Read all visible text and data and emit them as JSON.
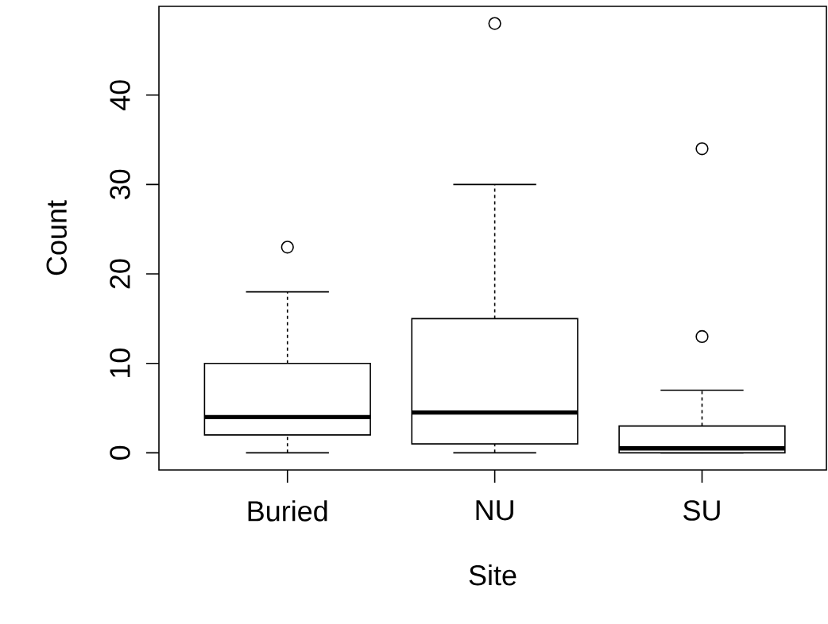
{
  "chart_data": {
    "type": "box",
    "xlabel": "Site",
    "ylabel": "Count",
    "categories": [
      "Buried",
      "NU",
      "SU"
    ],
    "boxes": [
      {
        "low": 0,
        "q1": 2,
        "median": 4,
        "q3": 10,
        "high": 18,
        "outliers": [
          23
        ]
      },
      {
        "low": 0,
        "q1": 1,
        "median": 4.5,
        "q3": 15,
        "high": 30,
        "outliers": [
          48
        ]
      },
      {
        "low": 0,
        "q1": 0,
        "median": 0.5,
        "q3": 3,
        "high": 7,
        "outliers": [
          13,
          34
        ]
      }
    ],
    "ylim": [
      -1.92,
      49.92
    ],
    "yticks": [
      0,
      10,
      20,
      30,
      40
    ]
  }
}
